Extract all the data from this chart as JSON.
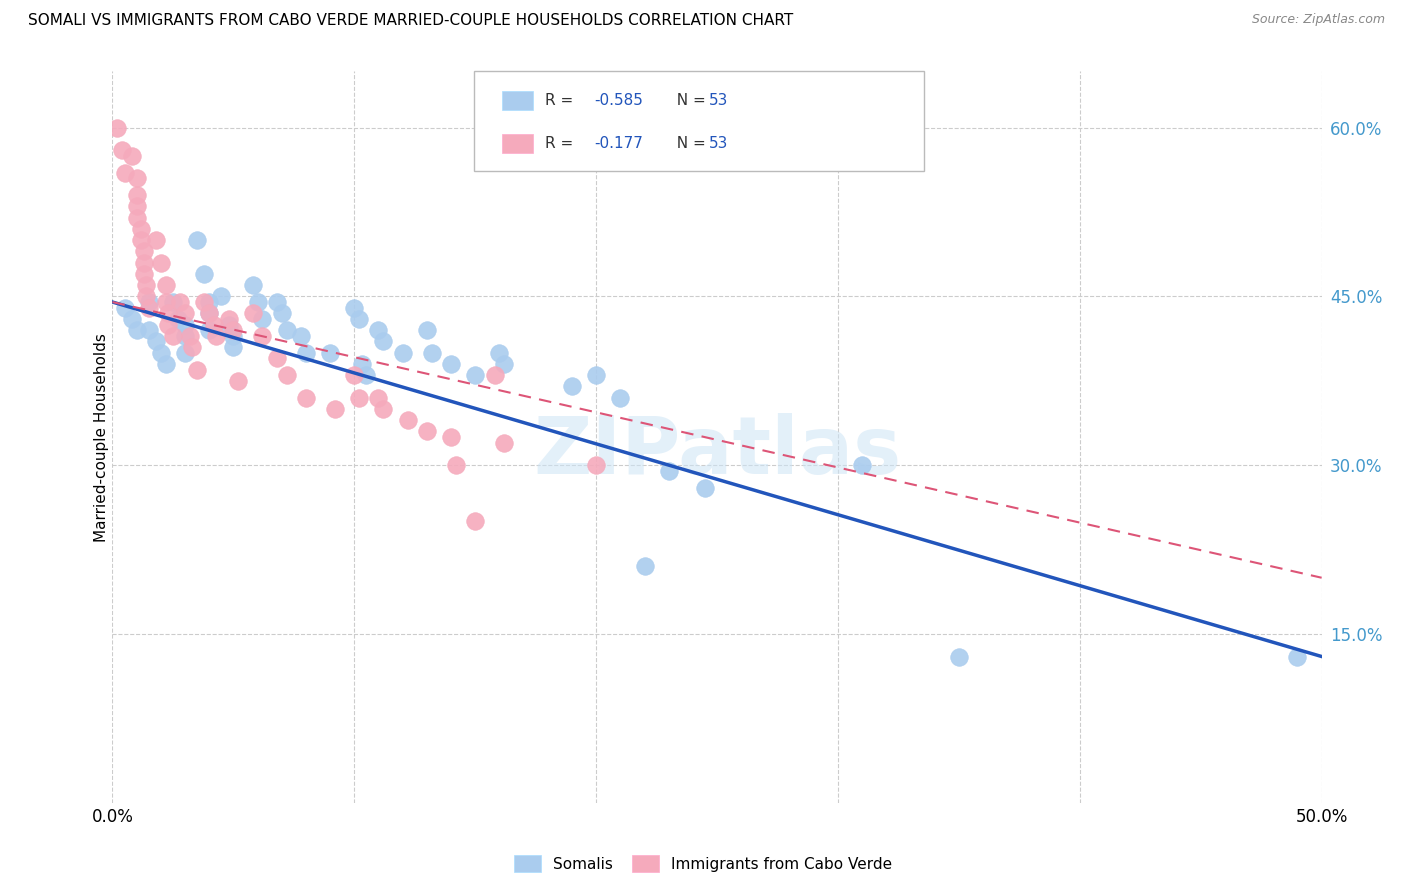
{
  "title": "SOMALI VS IMMIGRANTS FROM CABO VERDE MARRIED-COUPLE HOUSEHOLDS CORRELATION CHART",
  "source": "Source: ZipAtlas.com",
  "ylabel": "Married-couple Households",
  "xlim": [
    0.0,
    0.5
  ],
  "ylim": [
    0.0,
    0.65
  ],
  "xticks": [
    0.0,
    0.1,
    0.2,
    0.3,
    0.4,
    0.5
  ],
  "xticklabels": [
    "0.0%",
    "",
    "",
    "",
    "",
    "50.0%"
  ],
  "yticks": [
    0.15,
    0.3,
    0.45,
    0.6
  ],
  "blue_R": -0.585,
  "pink_R": -0.177,
  "N": 53,
  "blue_color": "#aaccee",
  "pink_color": "#f5aabc",
  "blue_line_color": "#2255bb",
  "pink_line_color": "#dd5577",
  "watermark": "ZIPatlas",
  "axis_tick_color": "#4499cc",
  "grid_color": "#cccccc",
  "blue_scatter": [
    [
      0.005,
      0.44
    ],
    [
      0.008,
      0.43
    ],
    [
      0.01,
      0.42
    ],
    [
      0.015,
      0.445
    ],
    [
      0.015,
      0.42
    ],
    [
      0.018,
      0.41
    ],
    [
      0.02,
      0.4
    ],
    [
      0.022,
      0.39
    ],
    [
      0.025,
      0.445
    ],
    [
      0.027,
      0.43
    ],
    [
      0.03,
      0.425
    ],
    [
      0.03,
      0.415
    ],
    [
      0.03,
      0.4
    ],
    [
      0.035,
      0.5
    ],
    [
      0.038,
      0.47
    ],
    [
      0.04,
      0.445
    ],
    [
      0.04,
      0.435
    ],
    [
      0.04,
      0.42
    ],
    [
      0.045,
      0.45
    ],
    [
      0.048,
      0.425
    ],
    [
      0.05,
      0.415
    ],
    [
      0.05,
      0.405
    ],
    [
      0.058,
      0.46
    ],
    [
      0.06,
      0.445
    ],
    [
      0.062,
      0.43
    ],
    [
      0.068,
      0.445
    ],
    [
      0.07,
      0.435
    ],
    [
      0.072,
      0.42
    ],
    [
      0.078,
      0.415
    ],
    [
      0.08,
      0.4
    ],
    [
      0.09,
      0.4
    ],
    [
      0.1,
      0.44
    ],
    [
      0.102,
      0.43
    ],
    [
      0.103,
      0.39
    ],
    [
      0.105,
      0.38
    ],
    [
      0.11,
      0.42
    ],
    [
      0.112,
      0.41
    ],
    [
      0.12,
      0.4
    ],
    [
      0.13,
      0.42
    ],
    [
      0.132,
      0.4
    ],
    [
      0.14,
      0.39
    ],
    [
      0.15,
      0.38
    ],
    [
      0.16,
      0.4
    ],
    [
      0.162,
      0.39
    ],
    [
      0.19,
      0.37
    ],
    [
      0.2,
      0.38
    ],
    [
      0.21,
      0.36
    ],
    [
      0.23,
      0.295
    ],
    [
      0.245,
      0.28
    ],
    [
      0.31,
      0.3
    ],
    [
      0.22,
      0.21
    ],
    [
      0.35,
      0.13
    ],
    [
      0.49,
      0.13
    ]
  ],
  "pink_scatter": [
    [
      0.002,
      0.6
    ],
    [
      0.004,
      0.58
    ],
    [
      0.005,
      0.56
    ],
    [
      0.008,
      0.575
    ],
    [
      0.01,
      0.555
    ],
    [
      0.01,
      0.54
    ],
    [
      0.01,
      0.53
    ],
    [
      0.01,
      0.52
    ],
    [
      0.012,
      0.51
    ],
    [
      0.012,
      0.5
    ],
    [
      0.013,
      0.49
    ],
    [
      0.013,
      0.48
    ],
    [
      0.013,
      0.47
    ],
    [
      0.014,
      0.46
    ],
    [
      0.014,
      0.45
    ],
    [
      0.015,
      0.44
    ],
    [
      0.018,
      0.5
    ],
    [
      0.02,
      0.48
    ],
    [
      0.022,
      0.46
    ],
    [
      0.022,
      0.445
    ],
    [
      0.023,
      0.435
    ],
    [
      0.023,
      0.425
    ],
    [
      0.025,
      0.415
    ],
    [
      0.028,
      0.445
    ],
    [
      0.03,
      0.435
    ],
    [
      0.032,
      0.415
    ],
    [
      0.033,
      0.405
    ],
    [
      0.035,
      0.385
    ],
    [
      0.038,
      0.445
    ],
    [
      0.04,
      0.435
    ],
    [
      0.042,
      0.425
    ],
    [
      0.043,
      0.415
    ],
    [
      0.048,
      0.43
    ],
    [
      0.05,
      0.42
    ],
    [
      0.052,
      0.375
    ],
    [
      0.058,
      0.435
    ],
    [
      0.062,
      0.415
    ],
    [
      0.068,
      0.395
    ],
    [
      0.072,
      0.38
    ],
    [
      0.08,
      0.36
    ],
    [
      0.092,
      0.35
    ],
    [
      0.1,
      0.38
    ],
    [
      0.102,
      0.36
    ],
    [
      0.11,
      0.36
    ],
    [
      0.112,
      0.35
    ],
    [
      0.122,
      0.34
    ],
    [
      0.13,
      0.33
    ],
    [
      0.14,
      0.325
    ],
    [
      0.142,
      0.3
    ],
    [
      0.15,
      0.25
    ],
    [
      0.158,
      0.38
    ],
    [
      0.162,
      0.32
    ],
    [
      0.2,
      0.3
    ]
  ]
}
